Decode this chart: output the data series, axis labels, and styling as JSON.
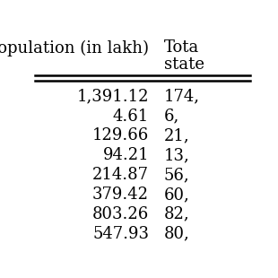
{
  "col1_header": "Population (in lakh)",
  "col2_header_line1": "Tota",
  "col2_header_line2": "state",
  "col1_values": [
    "1,391.12",
    "4.61",
    "129.66",
    "94.21",
    "214.87",
    "379.42",
    "803.26",
    "547.93"
  ],
  "col2_values": [
    "174,",
    "6,",
    "21,",
    "13,",
    "56,",
    "60,",
    "82,",
    "80,"
  ],
  "background_color": "#ffffff",
  "text_color": "#000000",
  "header_line_color": "#000000",
  "font_size": 13,
  "header_font_size": 13
}
